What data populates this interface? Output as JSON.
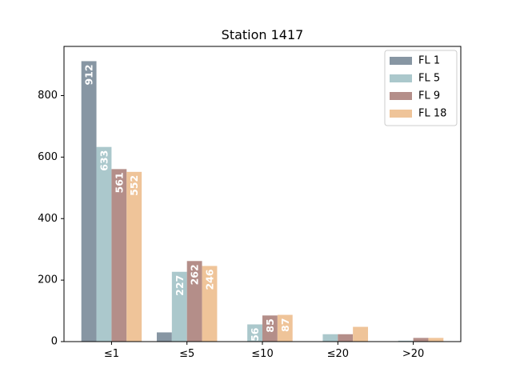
{
  "chart_data": {
    "type": "bar",
    "title": "Station 1417",
    "xlabel": "",
    "ylabel": "",
    "categories": [
      "≤1",
      "≤5",
      "≤10",
      "≤20",
      ">20"
    ],
    "ylim": [
      0,
      960
    ],
    "yticks": [
      0,
      200,
      400,
      600,
      800
    ],
    "grid": false,
    "legend_position": "top-right",
    "series": [
      {
        "name": "FL 1",
        "color": "#8796a3",
        "values": [
          912,
          30,
          0,
          0,
          0
        ],
        "labels": [
          "912",
          null,
          null,
          null,
          null
        ]
      },
      {
        "name": "FL 5",
        "color": "#abc8cc",
        "values": [
          633,
          227,
          56,
          24,
          3
        ],
        "labels": [
          "633",
          "227",
          "56",
          null,
          null
        ]
      },
      {
        "name": "FL 9",
        "color": "#b48e89",
        "values": [
          561,
          262,
          85,
          24,
          12
        ],
        "labels": [
          "561",
          "262",
          "85",
          null,
          null
        ]
      },
      {
        "name": "FL 18",
        "color": "#efc499",
        "values": [
          552,
          246,
          87,
          48,
          12
        ],
        "labels": [
          "552",
          "246",
          "87",
          null,
          null
        ]
      }
    ]
  }
}
